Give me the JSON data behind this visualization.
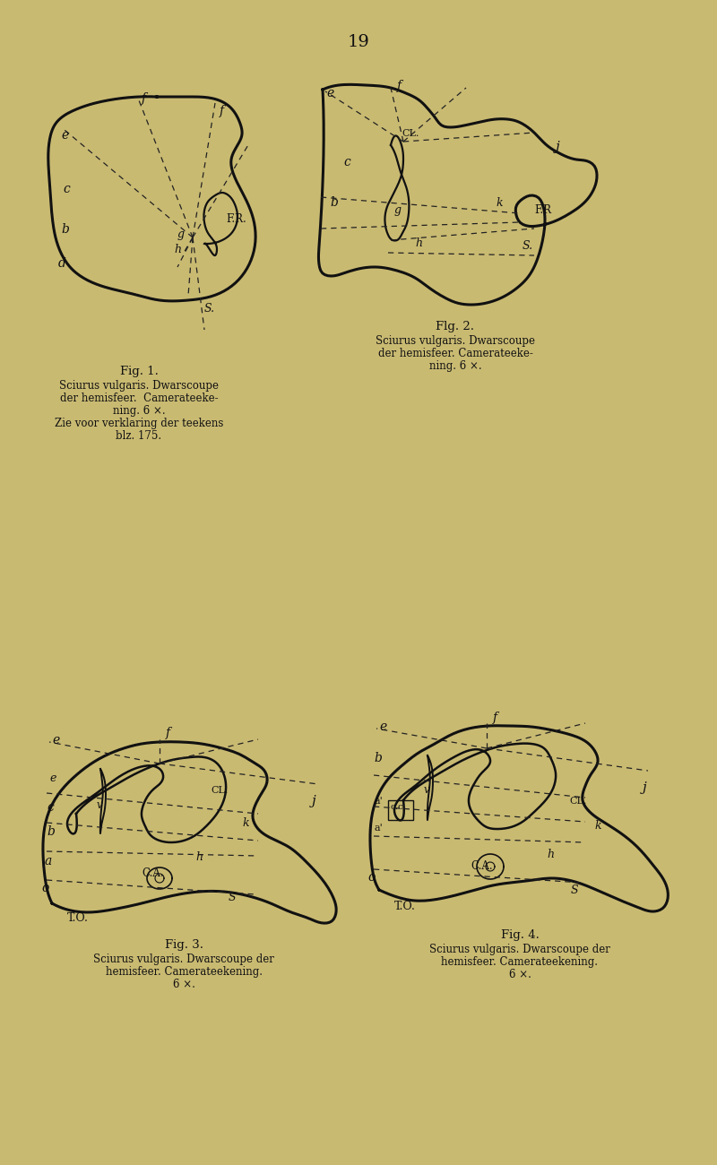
{
  "background_color": "#c9ba72",
  "page_number": "19",
  "fig1_caption": "Fig. 1.",
  "fig1_subcaption1": "Sciurus vulgaris. Dwarscoupe",
  "fig1_subcaption2": "der hemisfeer.  Camerateeke-",
  "fig1_subcaption3": "ning. 6 ×.",
  "fig1_subcaption4": "Zie voor verklaring der teekens",
  "fig1_subcaption5": "blz. 175.",
  "fig2_caption": "Flg. 2.",
  "fig2_subcaption1": "Sciurus vulgaris. Dwarscoupe",
  "fig2_subcaption2": "der hemisfeer. Camerateeke-",
  "fig2_subcaption3": "ning. 6 ×.",
  "fig3_caption": "Fig. 3.",
  "fig3_subcaption1": "Sciurus vulgaris. Dwarscoupe der",
  "fig3_subcaption2": "hemisfeer. Camerateekening.",
  "fig3_subcaption3": "6 ×.",
  "fig4_caption": "Fig. 4.",
  "fig4_subcaption1": "Sciurus vulgaris. Dwarscoupe der",
  "fig4_subcaption2": "hemisfeer. Camerateekening.",
  "fig4_subcaption3": "6 ×.",
  "line_color": "#111111",
  "dashed_color": "#222222",
  "text_color": "#111111"
}
